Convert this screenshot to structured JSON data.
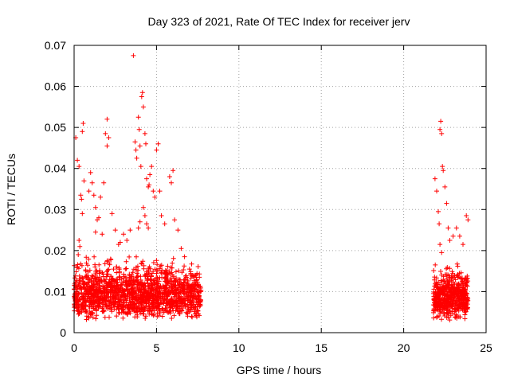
{
  "chart_data": {
    "type": "scatter",
    "title": "Day 323 of 2021, Rate Of TEC Index for receiver jerv",
    "xlabel": "GPS time / hours",
    "ylabel": "ROTI / TECUs",
    "xlim": [
      0,
      25
    ],
    "ylim": [
      0,
      0.07
    ],
    "xticks": [
      0,
      5,
      10,
      15,
      20,
      25
    ],
    "yticks": [
      0,
      0.01,
      0.02,
      0.03,
      0.04,
      0.05,
      0.06,
      0.07
    ],
    "xtick_labels": [
      "0",
      "5",
      "10",
      "15",
      "20",
      "25"
    ],
    "ytick_labels": [
      "0",
      "0.01",
      "0.02",
      "0.03",
      "0.04",
      "0.05",
      "0.06",
      "0.07"
    ],
    "grid": true,
    "marker": "+",
    "color": "#ff0000",
    "series": [
      {
        "name": "ROTI",
        "points": [
          [
            0.1,
            0.0475
          ],
          [
            0.2,
            0.042
          ],
          [
            0.3,
            0.0405
          ],
          [
            0.5,
            0.049
          ],
          [
            0.55,
            0.051
          ],
          [
            0.4,
            0.0335
          ],
          [
            0.45,
            0.0325
          ],
          [
            0.6,
            0.037
          ],
          [
            0.5,
            0.029
          ],
          [
            0.3,
            0.0225
          ],
          [
            0.35,
            0.021
          ],
          [
            0.25,
            0.019
          ],
          [
            0.2,
            0.016
          ],
          [
            0.9,
            0.0345
          ],
          [
            1.0,
            0.039
          ],
          [
            1.1,
            0.0365
          ],
          [
            1.2,
            0.0335
          ],
          [
            1.3,
            0.0305
          ],
          [
            1.4,
            0.0275
          ],
          [
            1.6,
            0.033
          ],
          [
            1.8,
            0.0365
          ],
          [
            2.0,
            0.052
          ],
          [
            1.9,
            0.0485
          ],
          [
            2.0,
            0.0455
          ],
          [
            2.1,
            0.0475
          ],
          [
            1.7,
            0.024
          ],
          [
            1.5,
            0.028
          ],
          [
            1.3,
            0.0245
          ],
          [
            2.3,
            0.029
          ],
          [
            2.5,
            0.025
          ],
          [
            2.7,
            0.0215
          ],
          [
            2.8,
            0.022
          ],
          [
            3.0,
            0.024
          ],
          [
            3.2,
            0.0225
          ],
          [
            3.4,
            0.025
          ],
          [
            3.6,
            0.0675
          ],
          [
            3.7,
            0.0465
          ],
          [
            3.75,
            0.0445
          ],
          [
            3.8,
            0.0425
          ],
          [
            3.9,
            0.0525
          ],
          [
            3.95,
            0.0495
          ],
          [
            4.0,
            0.0455
          ],
          [
            4.05,
            0.0405
          ],
          [
            4.1,
            0.0575
          ],
          [
            4.15,
            0.0585
          ],
          [
            4.2,
            0.055
          ],
          [
            4.3,
            0.0485
          ],
          [
            4.35,
            0.046
          ],
          [
            4.4,
            0.0375
          ],
          [
            4.5,
            0.0355
          ],
          [
            4.55,
            0.036
          ],
          [
            4.6,
            0.0385
          ],
          [
            4.7,
            0.0405
          ],
          [
            4.8,
            0.0345
          ],
          [
            4.9,
            0.033
          ],
          [
            5.0,
            0.0445
          ],
          [
            5.1,
            0.046
          ],
          [
            5.2,
            0.0345
          ],
          [
            4.2,
            0.0305
          ],
          [
            4.3,
            0.0285
          ],
          [
            4.4,
            0.0265
          ],
          [
            4.5,
            0.0255
          ],
          [
            4.0,
            0.027
          ],
          [
            3.9,
            0.0255
          ],
          [
            5.3,
            0.0285
          ],
          [
            5.5,
            0.0265
          ],
          [
            5.8,
            0.038
          ],
          [
            5.9,
            0.0365
          ],
          [
            6.0,
            0.0395
          ],
          [
            6.1,
            0.0275
          ],
          [
            6.3,
            0.025
          ],
          [
            6.5,
            0.0205
          ],
          [
            6.7,
            0.0185
          ],
          [
            7.0,
            0.0155
          ],
          [
            7.4,
            0.014
          ],
          [
            7.6,
            0.0135
          ],
          [
            21.9,
            0.0375
          ],
          [
            22.0,
            0.0345
          ],
          [
            22.1,
            0.0295
          ],
          [
            22.15,
            0.0265
          ],
          [
            22.2,
            0.0495
          ],
          [
            22.25,
            0.0515
          ],
          [
            22.3,
            0.0485
          ],
          [
            22.35,
            0.0405
          ],
          [
            22.4,
            0.0395
          ],
          [
            22.5,
            0.0355
          ],
          [
            22.6,
            0.0315
          ],
          [
            22.7,
            0.0255
          ],
          [
            22.8,
            0.0225
          ],
          [
            23.0,
            0.0235
          ],
          [
            23.2,
            0.0255
          ],
          [
            23.4,
            0.0235
          ],
          [
            23.6,
            0.0215
          ],
          [
            23.8,
            0.0285
          ],
          [
            23.9,
            0.0275
          ],
          [
            22.2,
            0.0215
          ],
          [
            22.3,
            0.0195
          ]
        ],
        "dense_clusters": [
          {
            "x_range": [
              0.0,
              7.7
            ],
            "y_range": [
              0.003,
              0.02
            ],
            "points": 1600,
            "seed": 7
          },
          {
            "x_range": [
              21.8,
              23.9
            ],
            "y_range": [
              0.003,
              0.018
            ],
            "points": 550,
            "seed": 11
          }
        ]
      }
    ]
  }
}
